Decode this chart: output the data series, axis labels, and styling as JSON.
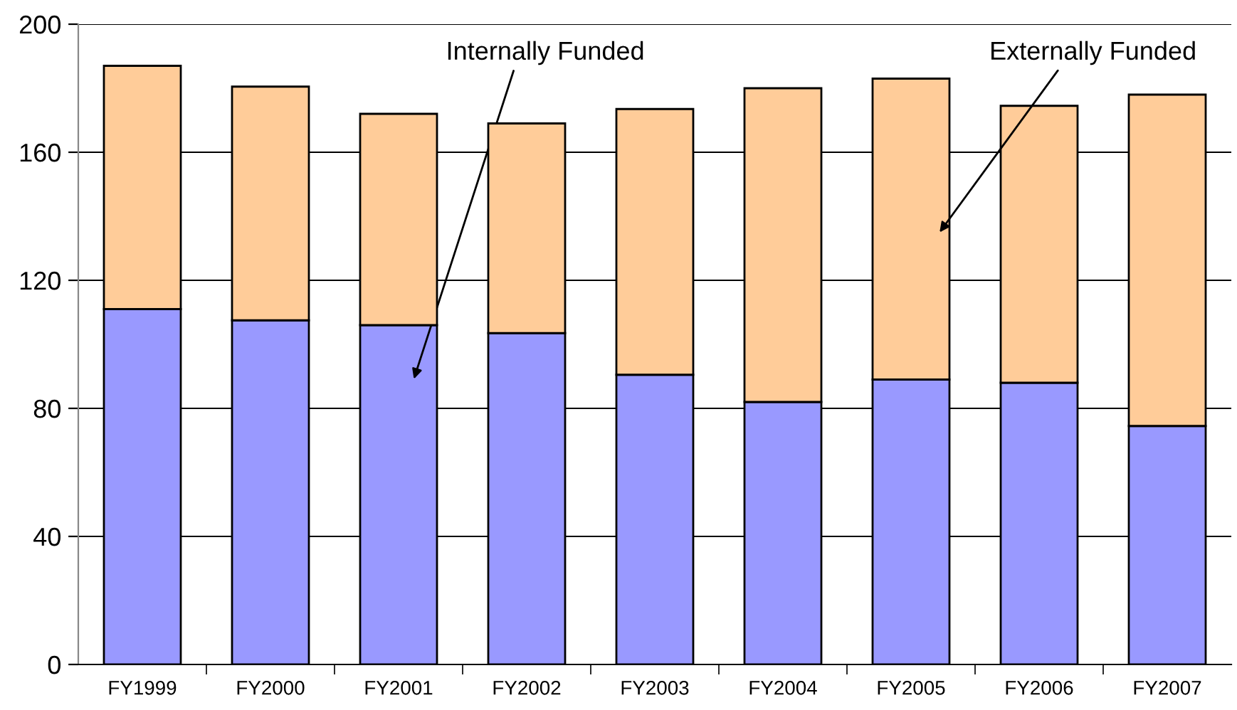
{
  "chart_data": {
    "type": "bar",
    "stacked": true,
    "categories": [
      "FY1999",
      "FY2000",
      "FY2001",
      "FY2002",
      "FY2003",
      "FY2004",
      "FY2005",
      "FY2006",
      "FY2007"
    ],
    "series": [
      {
        "name": "Internally Funded",
        "color": "#9999ff",
        "values": [
          111,
          107.5,
          106,
          103.5,
          90.5,
          82,
          89,
          88,
          74.5
        ]
      },
      {
        "name": "Externally Funded",
        "color": "#ffcc99",
        "values": [
          76,
          73,
          66,
          65.5,
          83,
          98,
          94,
          86.5,
          103.5
        ]
      }
    ],
    "ylim": [
      0,
      200
    ],
    "yticks": [
      0,
      40,
      80,
      120,
      160,
      200
    ],
    "grid": "y"
  }
}
